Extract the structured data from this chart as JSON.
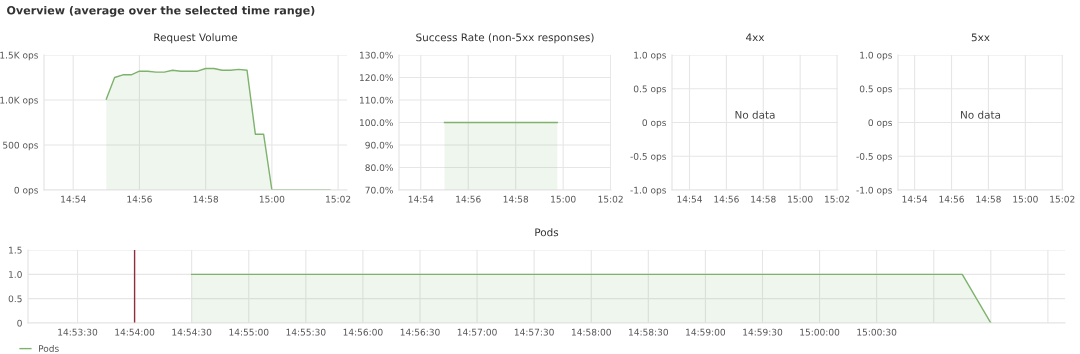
{
  "chart_data": [
    {
      "type": "other",
      "title": "Overview (average over the selected time range)"
    },
    {
      "type": "area",
      "title": "Request Volume",
      "grid": true,
      "xlim": [
        14.8853,
        15.0378
      ],
      "xticks": [
        {
          "value": 14.9,
          "label": "14:54"
        },
        {
          "value": 14.93333,
          "label": "14:56"
        },
        {
          "value": 14.96667,
          "label": "14:58"
        },
        {
          "value": 15.0,
          "label": "15:00"
        },
        {
          "value": 15.03333,
          "label": "15:02"
        }
      ],
      "ylim": [
        0,
        1500
      ],
      "yticks": [
        {
          "value": 0,
          "label": "0 ops"
        },
        {
          "value": 500,
          "label": "500 ops"
        },
        {
          "value": 1000,
          "label": "1.0K ops"
        },
        {
          "value": 1500,
          "label": "1.5K ops"
        }
      ],
      "series": [
        {
          "color": "#7eb26d",
          "x": [
            14.91667,
            14.92083,
            14.925,
            14.92917,
            14.93333,
            14.9375,
            14.94167,
            14.94583,
            14.95,
            14.95417,
            14.95833,
            14.9625,
            14.96667,
            14.97083,
            14.975,
            14.97917,
            14.98333,
            14.9875,
            14.99167,
            14.99583,
            15.0,
            15.00833,
            15.01667,
            15.02917
          ],
          "values": [
            1010,
            1250,
            1280,
            1280,
            1320,
            1320,
            1310,
            1310,
            1330,
            1320,
            1320,
            1320,
            1350,
            1350,
            1330,
            1330,
            1340,
            1330,
            620,
            620,
            0,
            0,
            0,
            0
          ]
        }
      ]
    },
    {
      "type": "area",
      "title": "Success Rate (non-5xx responses)",
      "grid": true,
      "xlim": [
        14.8847,
        15.0336
      ],
      "xticks": [
        {
          "value": 14.9,
          "label": "14:54"
        },
        {
          "value": 14.93333,
          "label": "14:56"
        },
        {
          "value": 14.96667,
          "label": "14:58"
        },
        {
          "value": 15.0,
          "label": "15:00"
        },
        {
          "value": 15.03333,
          "label": "15:02"
        }
      ],
      "ylim": [
        70,
        130
      ],
      "yticks": [
        {
          "value": 70,
          "label": "70.0%"
        },
        {
          "value": 80,
          "label": "80.0%"
        },
        {
          "value": 90,
          "label": "90.0%"
        },
        {
          "value": 100,
          "label": "100.0%"
        },
        {
          "value": 110,
          "label": "110.0%"
        },
        {
          "value": 120,
          "label": "120.0%"
        },
        {
          "value": 130,
          "label": "130.0%"
        }
      ],
      "series": [
        {
          "color": "#7eb26d",
          "x": [
            14.91667,
            14.99583
          ],
          "values": [
            100,
            100
          ]
        }
      ]
    },
    {
      "type": "line",
      "title": "4xx",
      "grid": true,
      "xlim": [
        14.8842,
        15.0342
      ],
      "xticks": [
        {
          "value": 14.9,
          "label": "14:54"
        },
        {
          "value": 14.93333,
          "label": "14:56"
        },
        {
          "value": 14.96667,
          "label": "14:58"
        },
        {
          "value": 15.0,
          "label": "15:00"
        },
        {
          "value": 15.03333,
          "label": "15:02"
        }
      ],
      "ylim": [
        -1,
        1
      ],
      "yticks": [
        {
          "value": -1,
          "label": "-1.0 ops"
        },
        {
          "value": -0.5,
          "label": "-0.5 ops"
        },
        {
          "value": 0,
          "label": "0 ops"
        },
        {
          "value": 0.5,
          "label": "0.5 ops"
        },
        {
          "value": 1,
          "label": "1.0 ops"
        }
      ],
      "annotations": [
        "No data"
      ]
    },
    {
      "type": "line",
      "title": "5xx",
      "grid": true,
      "xlim": [
        14.885,
        15.034
      ],
      "xticks": [
        {
          "value": 14.9,
          "label": "14:54"
        },
        {
          "value": 14.93333,
          "label": "14:56"
        },
        {
          "value": 14.96667,
          "label": "14:58"
        },
        {
          "value": 15.0,
          "label": "15:00"
        },
        {
          "value": 15.03333,
          "label": "15:02"
        }
      ],
      "ylim": [
        -1,
        1
      ],
      "yticks": [
        {
          "value": -1,
          "label": "-1.0 ops"
        },
        {
          "value": -0.5,
          "label": "-0.5 ops"
        },
        {
          "value": 0,
          "label": "0 ops"
        },
        {
          "value": 0.5,
          "label": "0.5 ops"
        },
        {
          "value": 1,
          "label": "1.0 ops"
        }
      ],
      "annotations": [
        "No data"
      ]
    },
    {
      "type": "area",
      "title": "Pods",
      "grid": true,
      "legend": "bottom left",
      "xlim": [
        14.88444,
        15.03583
      ],
      "xticks": [
        {
          "value": 14.89167,
          "label": "14:53:30"
        },
        {
          "value": 14.9,
          "label": "14:54:00"
        },
        {
          "value": 14.90833,
          "label": "14:54:30"
        },
        {
          "value": 14.91667,
          "label": "14:55:00"
        },
        {
          "value": 14.925,
          "label": "14:55:30"
        },
        {
          "value": 14.93333,
          "label": "14:56:00"
        },
        {
          "value": 14.94167,
          "label": "14:56:30"
        },
        {
          "value": 14.95,
          "label": "14:57:00"
        },
        {
          "value": 14.95833,
          "label": "14:57:30"
        },
        {
          "value": 14.96667,
          "label": "14:58:00"
        },
        {
          "value": 14.975,
          "label": "14:58:30"
        },
        {
          "value": 14.98333,
          "label": "14:59:00"
        },
        {
          "value": 14.99167,
          "label": "14:59:30"
        },
        {
          "value": 15.0,
          "label": "15:00:00"
        },
        {
          "value": 15.00833,
          "label": "15:00:30"
        },
        {
          "value": 15.01667,
          "label": null
        },
        {
          "value": 15.025,
          "label": null
        },
        {
          "value": 15.03333,
          "label": null
        }
      ],
      "ylim": [
        0,
        1.5
      ],
      "yticks": [
        0,
        0.5,
        {
          "value": 1,
          "label": "1.0"
        },
        1.5
      ],
      "ref_lines": [
        {
          "axis": "x",
          "value": 14.9,
          "color": "#8f2d3c"
        }
      ],
      "series": [
        {
          "name": "Pods",
          "color": "#7eb26d",
          "x": [
            14.90833,
            15.02083,
            15.025
          ],
          "values": [
            1,
            1,
            0
          ]
        }
      ]
    }
  ]
}
